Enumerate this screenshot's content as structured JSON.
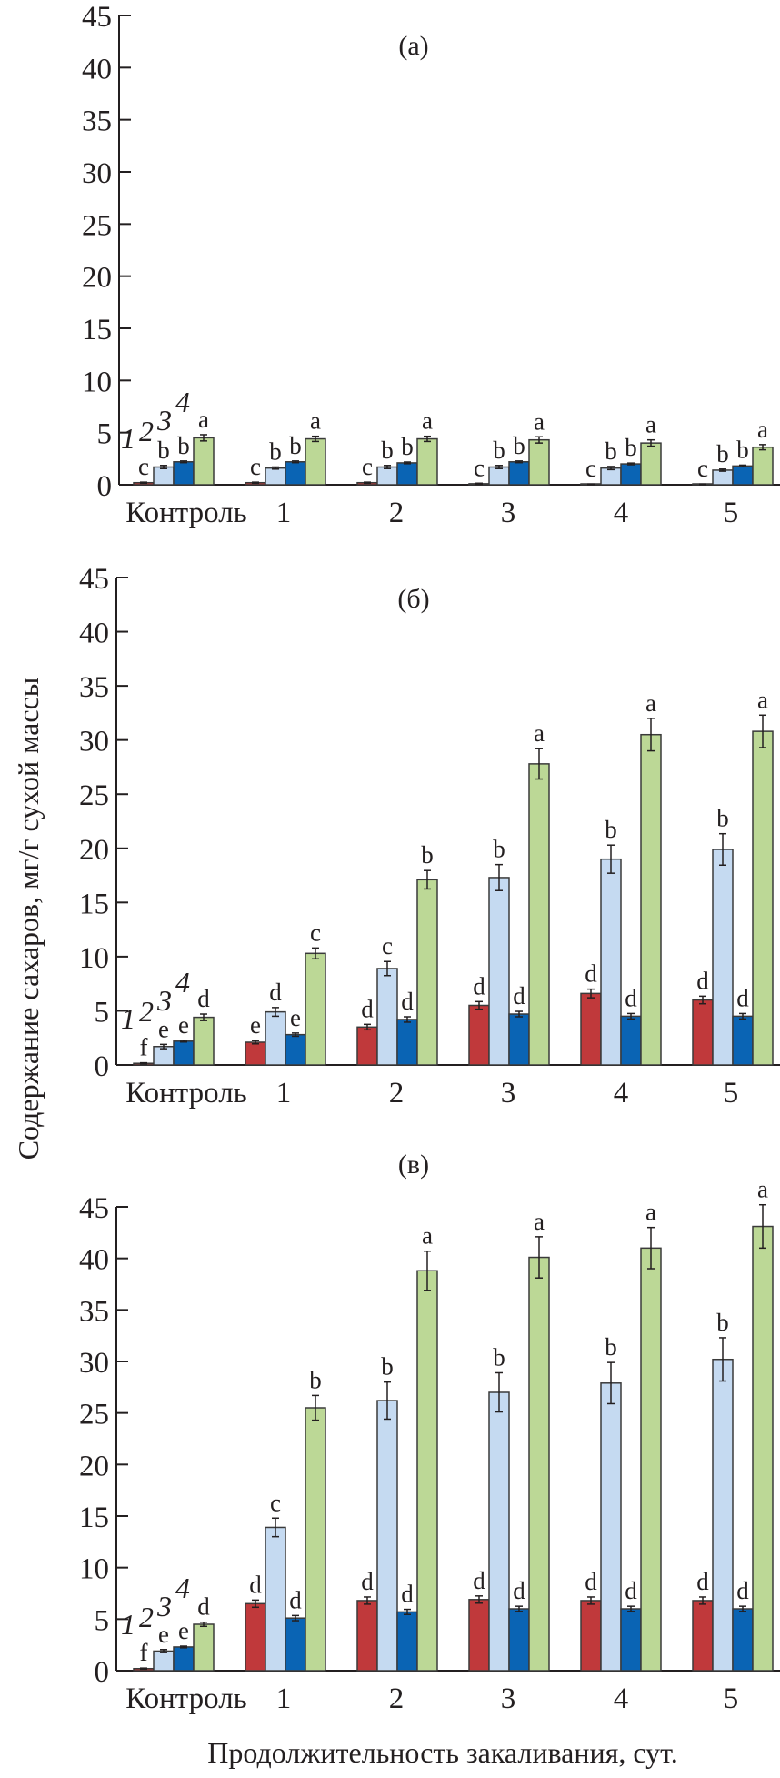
{
  "figure": {
    "ylabel": "Содержание сахаров, мг/г сухой массы",
    "xlabel": "Продолжительность закаливания, сут."
  },
  "chart_data": [
    {
      "type": "bar",
      "panel": "(а)",
      "categories": [
        "Контроль",
        "1",
        "2",
        "3",
        "4",
        "5"
      ],
      "ylim": [
        0,
        45
      ],
      "yticks": [
        0,
        5,
        10,
        15,
        20,
        25,
        30,
        35,
        40,
        45
      ],
      "ylabel": "Содержание сахаров, мг/г сухой массы",
      "xlabel": "",
      "grid": false,
      "series": [
        {
          "name": "1",
          "color": "#c0393b",
          "values": [
            0.2,
            0.2,
            0.2,
            0.1,
            0.05,
            0.05
          ],
          "errors": [
            0.05,
            0.05,
            0.05,
            0.05,
            0.02,
            0.02
          ],
          "letters": [
            "c",
            "c",
            "c",
            "c",
            "c",
            "c"
          ]
        },
        {
          "name": "2",
          "color": "#c5daf1",
          "values": [
            1.7,
            1.6,
            1.7,
            1.7,
            1.6,
            1.4
          ],
          "errors": [
            0.15,
            0.1,
            0.15,
            0.15,
            0.15,
            0.1
          ],
          "letters": [
            "b",
            "b",
            "b",
            "b",
            "b",
            "b"
          ]
        },
        {
          "name": "3",
          "color": "#0a64b4",
          "values": [
            2.2,
            2.2,
            2.1,
            2.2,
            2.0,
            1.8
          ],
          "errors": [
            0.08,
            0.08,
            0.08,
            0.08,
            0.08,
            0.08
          ],
          "letters": [
            "b",
            "b",
            "b",
            "b",
            "b",
            "b"
          ]
        },
        {
          "name": "4",
          "color": "#bcd896",
          "values": [
            4.5,
            4.4,
            4.4,
            4.3,
            4.0,
            3.6
          ],
          "errors": [
            0.3,
            0.25,
            0.25,
            0.3,
            0.3,
            0.25
          ],
          "letters": [
            "a",
            "a",
            "a",
            "a",
            "a",
            "a"
          ]
        }
      ]
    },
    {
      "type": "bar",
      "panel": "(б)",
      "categories": [
        "Контроль",
        "1",
        "2",
        "3",
        "4",
        "5"
      ],
      "ylim": [
        0,
        45
      ],
      "yticks": [
        0,
        5,
        10,
        15,
        20,
        25,
        30,
        35,
        40,
        45
      ],
      "ylabel": "Содержание сахаров, мг/г сухой массы",
      "xlabel": "",
      "grid": false,
      "series": [
        {
          "name": "1",
          "color": "#c0393b",
          "values": [
            0.15,
            2.1,
            3.5,
            5.5,
            6.6,
            6.0
          ],
          "errors": [
            0.05,
            0.15,
            0.25,
            0.35,
            0.4,
            0.35
          ],
          "letters": [
            "f",
            "e",
            "d",
            "d",
            "d",
            "d"
          ]
        },
        {
          "name": "2",
          "color": "#c5daf1",
          "values": [
            1.7,
            4.9,
            8.9,
            17.3,
            19.0,
            19.9
          ],
          "errors": [
            0.2,
            0.4,
            0.65,
            1.2,
            1.3,
            1.45
          ],
          "letters": [
            "e",
            "d",
            "c",
            "b",
            "b",
            "b"
          ]
        },
        {
          "name": "3",
          "color": "#0a64b4",
          "values": [
            2.2,
            2.8,
            4.2,
            4.7,
            4.5,
            4.5
          ],
          "errors": [
            0.08,
            0.15,
            0.25,
            0.25,
            0.25,
            0.25
          ],
          "letters": [
            "e",
            "e",
            "d",
            "d",
            "d",
            "d"
          ]
        },
        {
          "name": "4",
          "color": "#bcd896",
          "values": [
            4.4,
            10.3,
            17.1,
            27.8,
            30.5,
            30.8
          ],
          "errors": [
            0.3,
            0.5,
            0.85,
            1.4,
            1.5,
            1.5
          ],
          "letters": [
            "d",
            "c",
            "b",
            "a",
            "a",
            "a"
          ]
        }
      ]
    },
    {
      "type": "bar",
      "panel": "(в)",
      "categories": [
        "Контроль",
        "1",
        "2",
        "3",
        "4",
        "5"
      ],
      "ylim": [
        0,
        45
      ],
      "yticks": [
        0,
        5,
        10,
        15,
        20,
        25,
        30,
        35,
        40,
        45
      ],
      "ylabel": "Содержание сахаров, мг/г сухой массы",
      "xlabel": "Продолжительность закаливания, сут.",
      "grid": false,
      "series": [
        {
          "name": "1",
          "color": "#c0393b",
          "values": [
            0.2,
            6.5,
            6.8,
            6.9,
            6.8,
            6.8
          ],
          "errors": [
            0.05,
            0.35,
            0.35,
            0.35,
            0.35,
            0.35
          ],
          "letters": [
            "f",
            "d",
            "d",
            "d",
            "d",
            "d"
          ]
        },
        {
          "name": "2",
          "color": "#c5daf1",
          "values": [
            1.9,
            13.9,
            26.2,
            27.0,
            27.9,
            30.2
          ],
          "errors": [
            0.15,
            0.9,
            1.8,
            1.9,
            2.0,
            2.1
          ],
          "letters": [
            "e",
            "c",
            "b",
            "b",
            "b",
            "b"
          ]
        },
        {
          "name": "3",
          "color": "#0a64b4",
          "values": [
            2.3,
            5.1,
            5.7,
            6.0,
            6.0,
            6.0
          ],
          "errors": [
            0.08,
            0.25,
            0.25,
            0.25,
            0.25,
            0.25
          ],
          "letters": [
            "e",
            "d",
            "d",
            "d",
            "d",
            "d"
          ]
        },
        {
          "name": "4",
          "color": "#bcd896",
          "values": [
            4.5,
            25.5,
            38.8,
            40.1,
            41.0,
            43.1
          ],
          "errors": [
            0.2,
            1.2,
            1.9,
            2.0,
            2.0,
            2.1
          ],
          "letters": [
            "d",
            "b",
            "a",
            "a",
            "a",
            "a"
          ]
        }
      ]
    }
  ]
}
